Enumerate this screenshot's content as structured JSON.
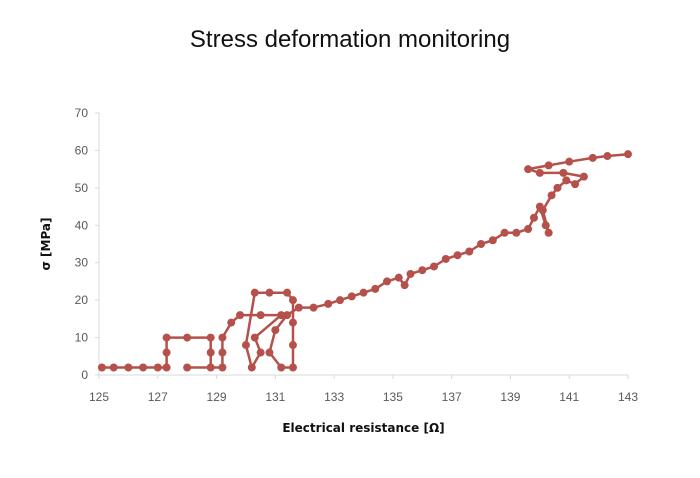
{
  "chart_data": {
    "type": "scatter",
    "title": "Stress deformation monitoring",
    "xlabel": "Electrical resistance [Ω]",
    "ylabel": "σ   [MPa]",
    "xlim": [
      125,
      143
    ],
    "ylim": [
      0,
      70
    ],
    "x_ticks": [
      125,
      127,
      129,
      131,
      133,
      135,
      137,
      139,
      141,
      143
    ],
    "y_ticks": [
      0,
      10,
      20,
      30,
      40,
      50,
      60,
      70
    ],
    "grid": false,
    "legend": "none",
    "series": [
      {
        "color": "#b5514a",
        "style": "line-with-markers",
        "points": [
          [
            125.1,
            2
          ],
          [
            125.5,
            2
          ],
          [
            126.0,
            2
          ],
          [
            126.5,
            2
          ],
          [
            127.0,
            2
          ],
          [
            127.3,
            2
          ],
          [
            127.3,
            6
          ],
          [
            127.3,
            10
          ],
          [
            128.0,
            10
          ],
          [
            128.8,
            10
          ],
          [
            128.8,
            6
          ],
          [
            128.8,
            2
          ],
          [
            128.0,
            2
          ],
          [
            129.2,
            2
          ],
          [
            129.2,
            6
          ],
          [
            129.2,
            10
          ],
          [
            129.5,
            14
          ],
          [
            129.8,
            16
          ],
          [
            130.5,
            16
          ],
          [
            131.2,
            16
          ],
          [
            130.3,
            10
          ],
          [
            130.5,
            6
          ],
          [
            130.2,
            2
          ],
          [
            130.0,
            8
          ],
          [
            130.3,
            22
          ],
          [
            130.8,
            22
          ],
          [
            131.4,
            22
          ],
          [
            131.6,
            20
          ],
          [
            131.6,
            14
          ],
          [
            131.6,
            8
          ],
          [
            131.6,
            2
          ],
          [
            131.2,
            2
          ],
          [
            130.8,
            6
          ],
          [
            131.0,
            12
          ],
          [
            131.4,
            16
          ],
          [
            131.8,
            18
          ],
          [
            132.3,
            18
          ],
          [
            132.8,
            19
          ],
          [
            133.2,
            20
          ],
          [
            133.6,
            21
          ],
          [
            134.0,
            22
          ],
          [
            134.4,
            23
          ],
          [
            134.8,
            25
          ],
          [
            135.2,
            26
          ],
          [
            135.4,
            24
          ],
          [
            135.6,
            27
          ],
          [
            136.0,
            28
          ],
          [
            136.4,
            29
          ],
          [
            136.8,
            31
          ],
          [
            137.2,
            32
          ],
          [
            137.6,
            33
          ],
          [
            138.0,
            35
          ],
          [
            138.4,
            36
          ],
          [
            138.8,
            38
          ],
          [
            139.2,
            38
          ],
          [
            139.6,
            39
          ],
          [
            139.8,
            42
          ],
          [
            140.0,
            45
          ],
          [
            140.2,
            40
          ],
          [
            140.3,
            38
          ],
          [
            140.1,
            44
          ],
          [
            140.4,
            48
          ],
          [
            140.6,
            50
          ],
          [
            140.9,
            52
          ],
          [
            141.2,
            51
          ],
          [
            141.5,
            53
          ],
          [
            140.8,
            54
          ],
          [
            140.0,
            54
          ],
          [
            139.6,
            55
          ],
          [
            140.3,
            56
          ],
          [
            141.0,
            57
          ],
          [
            141.8,
            58
          ],
          [
            142.3,
            58.5
          ],
          [
            143.0,
            59
          ]
        ]
      }
    ]
  }
}
